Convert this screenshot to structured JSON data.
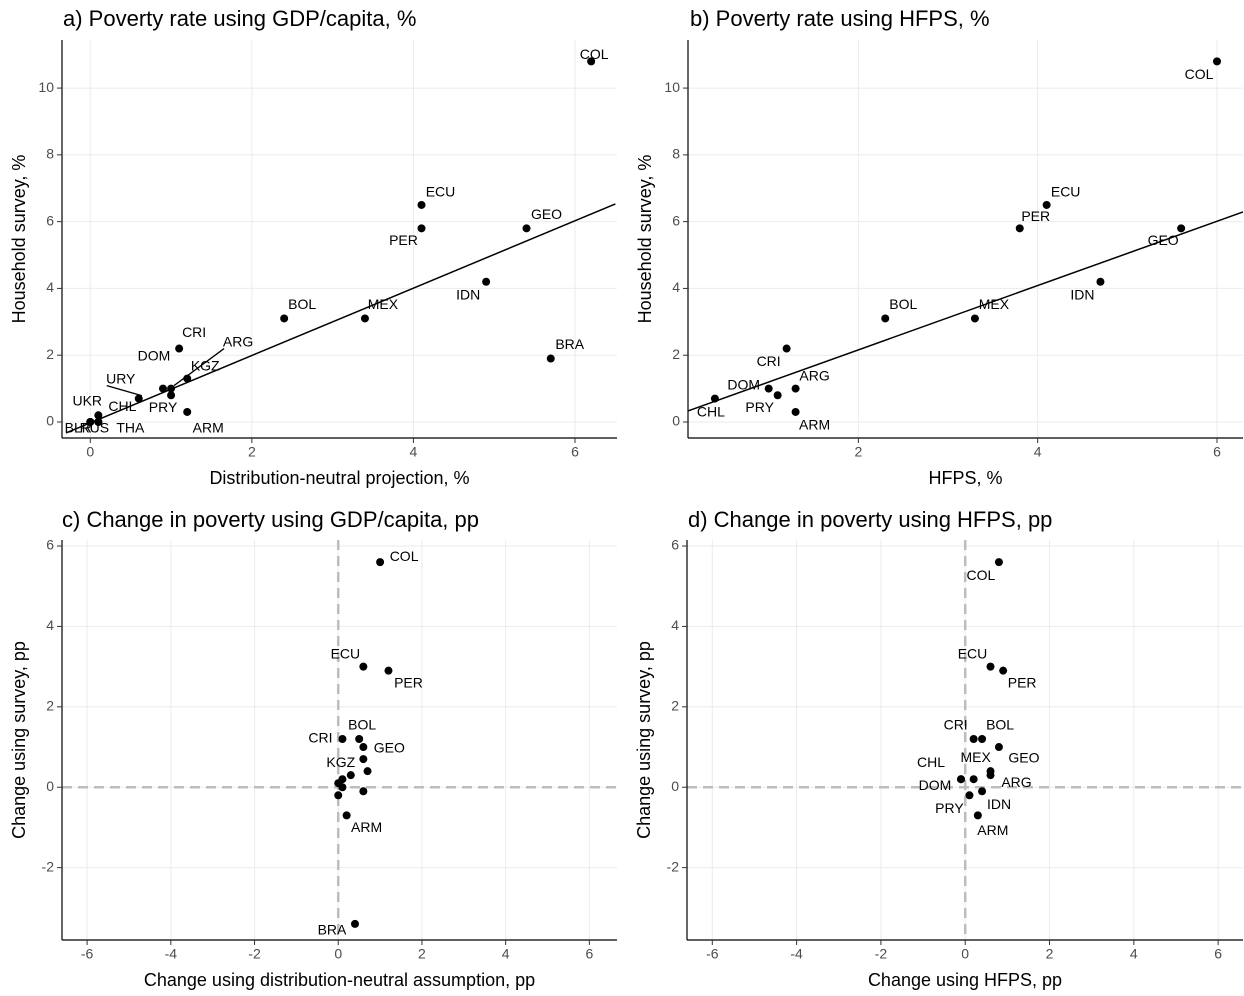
{
  "chart_data": [
    {
      "type": "scatter",
      "title": "a) Poverty rate using GDP/capita, %",
      "x_label": "Distribution-neutral projection, %",
      "y_label": "Household survey, %",
      "labels": [
        "COL",
        "ECU",
        "PER",
        "GEO",
        "IDN",
        "BRA",
        "BOL",
        "MEX",
        "CRI",
        "ARG",
        "DOM",
        "KGZ",
        "PRY",
        "ARM",
        "URY",
        "CHL",
        "UKR",
        "THA",
        "BLR",
        "RUS"
      ],
      "x": [
        6.2,
        4.1,
        4.1,
        5.4,
        4.9,
        5.7,
        2.4,
        3.4,
        1.1,
        1.0,
        0.9,
        1.2,
        1.0,
        1.2,
        0.6,
        0.1,
        0,
        0.1,
        0,
        0.1
      ],
      "y": [
        10.8,
        6.5,
        5.8,
        5.8,
        4.2,
        1.9,
        3.1,
        3.1,
        2.2,
        1.0,
        1.0,
        1.3,
        0.8,
        0.3,
        0.7,
        0.2,
        0,
        0,
        0,
        0
      ],
      "fit_line": {
        "x": [
          -0.3,
          6.5
        ],
        "y": [
          -0.33,
          6.53
        ]
      },
      "xlim": [
        -0.35,
        6.52
      ],
      "ylim": [
        -0.48,
        11.44
      ],
      "xticks": [
        0,
        2,
        4,
        6
      ],
      "yticks": [
        0,
        2,
        4,
        6,
        8,
        10
      ],
      "grid": true,
      "color": "#000000"
    },
    {
      "type": "scatter",
      "title": "b) Poverty rate using HFPS, %",
      "x_label": "HFPS, %",
      "y_label": "Household survey, %",
      "labels": [
        "COL",
        "ECU",
        "PER",
        "GEO",
        "IDN",
        "BOL",
        "MEX",
        "CRI",
        "DOM",
        "ARG",
        "PRY",
        "ARM",
        "CHL"
      ],
      "x": [
        6.0,
        4.1,
        3.8,
        5.6,
        4.7,
        2.3,
        3.3,
        1.2,
        1.0,
        1.3,
        1.1,
        1.3,
        0.4
      ],
      "y": [
        10.8,
        6.5,
        5.8,
        5.8,
        4.2,
        3.1,
        3.1,
        2.2,
        1.0,
        1.0,
        0.8,
        0.3,
        0.7
      ],
      "fit_line": {
        "x": [
          0.1,
          6.29
        ],
        "y": [
          0.33,
          6.29
        ]
      },
      "xlim": [
        0.1,
        6.29
      ],
      "ylim": [
        -0.48,
        11.44
      ],
      "xticks": [
        2,
        4,
        6
      ],
      "yticks": [
        0,
        2,
        4,
        6,
        8,
        10
      ],
      "grid": true,
      "color": "#000000"
    },
    {
      "type": "scatter",
      "title": "c) Change in poverty using GDP/capita, pp",
      "x_label": "Change using distribution-neutral assumption, pp",
      "y_label": "Change using survey, pp",
      "labels": [
        "COL",
        "ECU",
        "PER",
        "BOL",
        "CRI",
        "GEO",
        "KGZ",
        "ARM",
        "BRA",
        null,
        null,
        null,
        null,
        null,
        null,
        null
      ],
      "x": [
        1.0,
        0.6,
        1.2,
        0.5,
        0.1,
        0.6,
        0.3,
        0.2,
        0.4,
        0.6,
        0.7,
        0.1,
        0,
        0.1,
        0,
        0.6
      ],
      "y": [
        5.6,
        3.0,
        2.9,
        1.2,
        1.2,
        1.0,
        0.3,
        -0.7,
        -3.4,
        0.7,
        0.4,
        0.2,
        0.1,
        0,
        -0.2,
        -0.1
      ],
      "reference_lines": {
        "x": 0,
        "y": 0
      },
      "xlim": [
        -6.6,
        6.66
      ],
      "ylim": [
        -3.8,
        6.15
      ],
      "xticks": [
        -6,
        -4,
        -2,
        0,
        2,
        4,
        6
      ],
      "yticks": [
        -2,
        0,
        2,
        4,
        6
      ],
      "grid": true,
      "color": "#000000"
    },
    {
      "type": "scatter",
      "title": "d) Change in poverty using HFPS, pp",
      "x_label": "Change using HFPS, pp",
      "y_label": "Change using survey, pp",
      "labels": [
        "COL",
        "ECU",
        "PER",
        "CRI",
        "BOL",
        "GEO",
        "MEX",
        "ARG",
        "CHL",
        "DOM",
        "IDN",
        "PRY",
        "ARM",
        null
      ],
      "x": [
        0.8,
        0.6,
        0.9,
        0.2,
        0.4,
        0.8,
        0.2,
        0.6,
        -0.1,
        -0.1,
        0.4,
        0.1,
        0.3,
        0.6
      ],
      "y": [
        5.6,
        3.0,
        2.9,
        1.2,
        1.2,
        1.0,
        0.2,
        0.3,
        0.2,
        0.2,
        -0.1,
        -0.2,
        -0.7,
        0.4
      ],
      "reference_lines": {
        "x": 0,
        "y": 0
      },
      "xlim": [
        -6.6,
        6.59
      ],
      "ylim": [
        -3.8,
        6.15
      ],
      "xticks": [
        -6,
        -4,
        -2,
        0,
        2,
        4,
        6
      ],
      "yticks": [
        -2,
        0,
        2,
        4,
        6
      ],
      "grid": true,
      "color": "#000000"
    }
  ]
}
